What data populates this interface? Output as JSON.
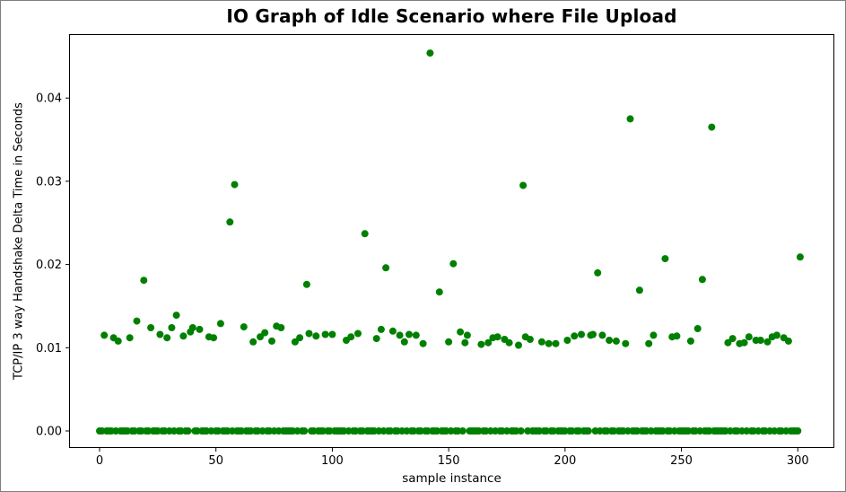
{
  "window": {
    "background": "#ffffff",
    "border_color": "#7f7f7f"
  },
  "chart_data": {
    "type": "scatter",
    "title": "IO Graph of Idle Scenario where File Upload",
    "xlabel": "sample instance",
    "ylabel": "TCP/IP 3 way Handshake Delta Time in Seconds",
    "legend": null,
    "grid": false,
    "marker_color": "#008000",
    "marker_size": 4,
    "x_ticks": [
      0,
      50,
      100,
      150,
      200,
      250,
      300
    ],
    "y_ticks": [
      "0.00",
      "0.01",
      "0.02",
      "0.03",
      "0.04"
    ],
    "xlim": [
      -13.1,
      315.7
    ],
    "ylim": [
      -0.00205,
      0.04768
    ],
    "x_is_sample_index": true,
    "y_values": [
      0,
      0,
      0.0115,
      0,
      0,
      0,
      0.0112,
      0,
      0.0108,
      0,
      0,
      0,
      0,
      0.0112,
      0,
      0,
      0.0132,
      0,
      0,
      0.0181,
      0,
      0,
      0.0124,
      0,
      0,
      0,
      0.0116,
      0,
      0,
      0.0112,
      0,
      0.0124,
      0,
      0.0139,
      0,
      0,
      0.0114,
      0,
      0,
      0.0119,
      0.0124,
      0,
      0,
      0.0122,
      0,
      0,
      0,
      0.0113,
      0,
      0.0112,
      0,
      0,
      0.0129,
      0,
      0,
      0,
      0.0251,
      0,
      0.0296,
      0,
      0,
      0,
      0.0125,
      0,
      0,
      0,
      0.0107,
      0,
      0,
      0.0113,
      0,
      0.0118,
      0,
      0,
      0.0108,
      0,
      0.0126,
      0,
      0.0124,
      0,
      0,
      0,
      0,
      0,
      0.0107,
      0,
      0.0112,
      0,
      0,
      0.0176,
      0.0117,
      0,
      0,
      0.0114,
      0,
      0,
      0,
      0.0116,
      0,
      0,
      0.0116,
      0,
      0,
      0,
      0,
      0,
      0.0109,
      0,
      0.0113,
      0,
      0,
      0.0117,
      0,
      0,
      0.0237,
      0,
      0,
      0,
      0,
      0.0111,
      0,
      0.0122,
      0,
      0.0196,
      0,
      0,
      0.012,
      0,
      0,
      0.0115,
      0,
      0.0107,
      0,
      0.0116,
      0,
      0,
      0.0115,
      0,
      0,
      0.0105,
      0,
      0,
      0.0454,
      0,
      0,
      0,
      0.0167,
      0,
      0,
      0,
      0.0107,
      0,
      0.0201,
      0,
      0,
      0.0119,
      0,
      0.0106,
      0.0115,
      0,
      0,
      0,
      0,
      0,
      0.0104,
      0,
      0,
      0.0106,
      0,
      0.0112,
      0,
      0.0113,
      0,
      0,
      0.011,
      0,
      0.0106,
      0,
      0,
      0,
      0.0103,
      0,
      0.0295,
      0.0113,
      0,
      0.011,
      0,
      0,
      0,
      0,
      0.0107,
      0,
      0,
      0.0105,
      0,
      0,
      0.0105,
      0,
      0,
      0,
      0,
      0.0109,
      0,
      0,
      0.0114,
      0,
      0,
      0.0116,
      0,
      0,
      0,
      0.0115,
      0.0116,
      0,
      0.019,
      0,
      0.0115,
      0,
      0,
      0.0109,
      0,
      0,
      0.0108,
      0,
      0,
      0,
      0.0105,
      0,
      0.0375,
      0,
      0,
      0,
      0.0169,
      0,
      0,
      0,
      0.0105,
      0,
      0.0115,
      0,
      0,
      0,
      0,
      0.0207,
      0,
      0,
      0.0113,
      0,
      0.0114,
      0,
      0,
      0,
      0,
      0,
      0.0108,
      0,
      0,
      0.0123,
      0,
      0.0182,
      0,
      0,
      0,
      0.0365,
      0,
      0,
      0,
      0,
      0,
      0,
      0.0106,
      0,
      0.0111,
      0,
      0,
      0.0105,
      0,
      0.0106,
      0,
      0.0113,
      0,
      0,
      0.0109,
      0,
      0.0109,
      0,
      0,
      0.0107,
      0,
      0.0113,
      0,
      0.0115,
      0,
      0,
      0.0112,
      0,
      0.0108,
      0,
      0,
      0,
      0,
      0.0209
    ]
  }
}
